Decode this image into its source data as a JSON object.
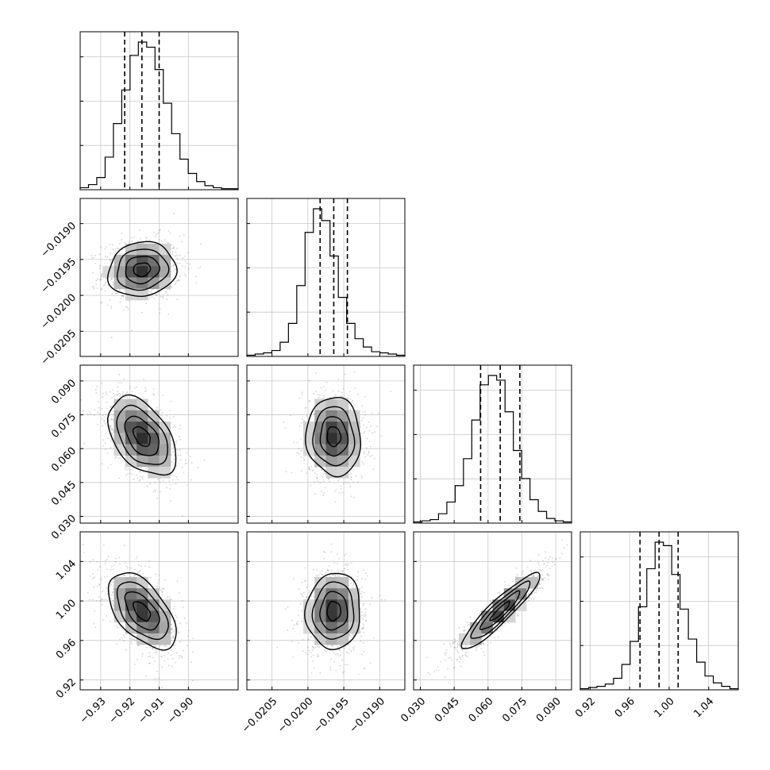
{
  "chart_data": {
    "type": "corner",
    "grid": true,
    "parameters": [
      {
        "id": "p0",
        "range": [
          -0.937,
          -0.883
        ],
        "ticks": [
          -0.93,
          -0.92,
          -0.91,
          -0.9
        ],
        "tick_labels": [
          "−0.93",
          "−0.92",
          "−0.91",
          "−0.90"
        ],
        "quantiles": [
          -0.9218,
          -0.9159,
          -0.91
        ],
        "hist_counts": [
          2,
          5,
          12,
          32,
          65,
          98,
          132,
          145,
          140,
          118,
          85,
          55,
          30,
          16,
          8,
          4,
          2,
          1,
          1
        ]
      },
      {
        "id": "p1",
        "range": [
          -0.02085,
          -0.01865
        ],
        "ticks": [
          -0.0205,
          -0.02,
          -0.0195,
          -0.019
        ],
        "tick_labels": [
          "−0.0205",
          "−0.0200",
          "−0.0195",
          "−0.0190"
        ],
        "quantiles": [
          -0.01983,
          -0.01964,
          -0.01945
        ],
        "hist_counts": [
          1,
          2,
          3,
          5,
          12,
          28,
          60,
          105,
          125,
          115,
          85,
          50,
          28,
          15,
          8,
          4,
          3,
          2,
          1
        ]
      },
      {
        "id": "p2",
        "range": [
          0.027,
          0.097
        ],
        "ticks": [
          0.03,
          0.045,
          0.06,
          0.075,
          0.09
        ],
        "tick_labels": [
          "0.030",
          "0.045",
          "0.060",
          "0.075",
          "0.090"
        ],
        "quantiles": [
          0.0567,
          0.0654,
          0.0741
        ],
        "hist_counts": [
          1,
          2,
          3,
          8,
          18,
          32,
          55,
          88,
          118,
          126,
          122,
          95,
          62,
          38,
          20,
          10,
          4,
          2,
          1
        ]
      },
      {
        "id": "p3",
        "range": [
          0.91,
          1.07
        ],
        "ticks": [
          0.92,
          0.96,
          1.0,
          1.04
        ],
        "tick_labels": [
          "0.92",
          "0.96",
          "1.00",
          "1.04"
        ],
        "quantiles": [
          0.9705,
          0.9898,
          1.0091
        ],
        "hist_counts": [
          1,
          2,
          3,
          5,
          10,
          22,
          42,
          72,
          105,
          128,
          125,
          100,
          70,
          44,
          24,
          12,
          6,
          3,
          1
        ]
      }
    ],
    "pairs": [
      {
        "x": "p0",
        "y": "p1",
        "center": [
          -0.9159,
          -0.01964
        ],
        "sd": [
          0.0058,
          0.00019
        ],
        "corr": 0.1
      },
      {
        "x": "p0",
        "y": "p2",
        "center": [
          -0.9159,
          0.0654
        ],
        "sd": [
          0.0058,
          0.0087
        ],
        "corr": -0.45
      },
      {
        "x": "p1",
        "y": "p2",
        "center": [
          -0.01964,
          0.0654
        ],
        "sd": [
          0.00019,
          0.0087
        ],
        "corr": -0.05
      },
      {
        "x": "p0",
        "y": "p3",
        "center": [
          -0.9159,
          0.9898
        ],
        "sd": [
          0.0058,
          0.0193
        ],
        "corr": -0.55
      },
      {
        "x": "p1",
        "y": "p3",
        "center": [
          -0.01964,
          0.9898
        ],
        "sd": [
          0.00019,
          0.0193
        ],
        "corr": 0.05
      },
      {
        "x": "p2",
        "y": "p3",
        "center": [
          0.0654,
          0.9898
        ],
        "sd": [
          0.0087,
          0.0193
        ],
        "corr": 0.92
      }
    ],
    "contour_levels_sigma": [
      0.5,
      1.0,
      1.5,
      2.0
    ]
  }
}
